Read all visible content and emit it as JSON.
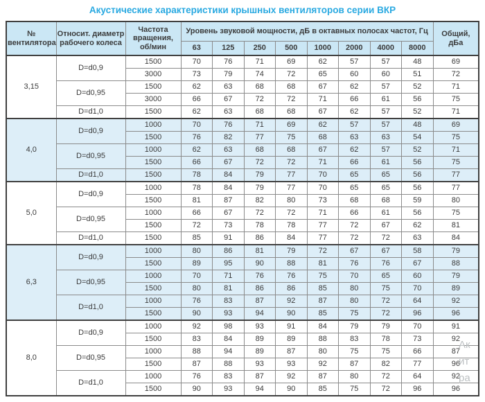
{
  "title": "Акустические характеристики крышных вентиляторов серии ВКР",
  "colors": {
    "title_color": "#29a9e1",
    "header_bg": "#cbe7f5",
    "group_shade_bg": "#ddeef8",
    "border_dark": "#3f3f3f",
    "border_light": "#8a8a8a",
    "text_color": "#3a3a3a",
    "watermark_color": "#bcc0c2"
  },
  "table": {
    "header": {
      "fan_no": "№ вентилятора",
      "diameter": "Относит. диаметр рабочего колеса",
      "speed": "Частота вращения, об/мин",
      "spl_group": "Уровень звуковой мощности, дБ в октавных полосах частот, Гц",
      "freqs": [
        "63",
        "125",
        "250",
        "500",
        "1000",
        "2000",
        "4000",
        "8000"
      ],
      "total": "Общий, дБа"
    },
    "groups": [
      {
        "fan": "3,15",
        "shaded": false,
        "subs": [
          {
            "d": "D=d0,9",
            "rows": [
              {
                "rpm": "1500",
                "v": [
                  70,
                  76,
                  71,
                  69,
                  62,
                  57,
                  57,
                  48
                ],
                "total": 69
              },
              {
                "rpm": "3000",
                "v": [
                  73,
                  79,
                  74,
                  72,
                  65,
                  60,
                  60,
                  51
                ],
                "total": 72
              }
            ]
          },
          {
            "d": "D=d0,95",
            "rows": [
              {
                "rpm": "1500",
                "v": [
                  62,
                  63,
                  68,
                  68,
                  67,
                  62,
                  57,
                  52
                ],
                "total": 71
              },
              {
                "rpm": "3000",
                "v": [
                  66,
                  67,
                  72,
                  72,
                  71,
                  66,
                  61,
                  56
                ],
                "total": 75
              }
            ]
          },
          {
            "d": "D=d1,0",
            "rows": [
              {
                "rpm": "1500",
                "v": [
                  62,
                  63,
                  68,
                  68,
                  67,
                  62,
                  57,
                  52
                ],
                "total": 71
              }
            ]
          }
        ]
      },
      {
        "fan": "4,0",
        "shaded": true,
        "subs": [
          {
            "d": "D=d0,9",
            "rows": [
              {
                "rpm": "1000",
                "v": [
                  70,
                  76,
                  71,
                  69,
                  62,
                  57,
                  57,
                  48
                ],
                "total": 69
              },
              {
                "rpm": "1500",
                "v": [
                  76,
                  82,
                  77,
                  75,
                  68,
                  63,
                  63,
                  54
                ],
                "total": 75
              }
            ]
          },
          {
            "d": "D=d0,95",
            "rows": [
              {
                "rpm": "1000",
                "v": [
                  62,
                  63,
                  68,
                  68,
                  67,
                  62,
                  57,
                  52
                ],
                "total": 71
              },
              {
                "rpm": "1500",
                "v": [
                  66,
                  67,
                  72,
                  72,
                  71,
                  66,
                  61,
                  56
                ],
                "total": 75
              }
            ]
          },
          {
            "d": "D=d1,0",
            "rows": [
              {
                "rpm": "1500",
                "v": [
                  78,
                  84,
                  79,
                  77,
                  70,
                  65,
                  65,
                  56
                ],
                "total": 77
              }
            ]
          }
        ]
      },
      {
        "fan": "5,0",
        "shaded": false,
        "subs": [
          {
            "d": "D=d0,9",
            "rows": [
              {
                "rpm": "1000",
                "v": [
                  78,
                  84,
                  79,
                  77,
                  70,
                  65,
                  65,
                  56
                ],
                "total": 77
              },
              {
                "rpm": "1500",
                "v": [
                  81,
                  87,
                  82,
                  80,
                  73,
                  68,
                  68,
                  59
                ],
                "total": 80
              }
            ]
          },
          {
            "d": "D=d0,95",
            "rows": [
              {
                "rpm": "1000",
                "v": [
                  66,
                  67,
                  72,
                  72,
                  71,
                  66,
                  61,
                  56
                ],
                "total": 75
              },
              {
                "rpm": "1500",
                "v": [
                  72,
                  73,
                  78,
                  78,
                  77,
                  72,
                  67,
                  62
                ],
                "total": 81
              }
            ]
          },
          {
            "d": "D=d1,0",
            "rows": [
              {
                "rpm": "1500",
                "v": [
                  85,
                  91,
                  86,
                  84,
                  77,
                  72,
                  72,
                  63
                ],
                "total": 84
              }
            ]
          }
        ]
      },
      {
        "fan": "6,3",
        "shaded": true,
        "subs": [
          {
            "d": "D=d0,9",
            "rows": [
              {
                "rpm": "1000",
                "v": [
                  80,
                  86,
                  81,
                  79,
                  72,
                  67,
                  67,
                  58
                ],
                "total": 79
              },
              {
                "rpm": "1500",
                "v": [
                  89,
                  95,
                  90,
                  88,
                  81,
                  76,
                  76,
                  67
                ],
                "total": 88
              }
            ]
          },
          {
            "d": "D=d0,95",
            "rows": [
              {
                "rpm": "1000",
                "v": [
                  70,
                  71,
                  76,
                  76,
                  75,
                  70,
                  65,
                  60
                ],
                "total": 79
              },
              {
                "rpm": "1500",
                "v": [
                  80,
                  81,
                  86,
                  86,
                  85,
                  80,
                  75,
                  70
                ],
                "total": 89
              }
            ]
          },
          {
            "d": "D=d1,0",
            "rows": [
              {
                "rpm": "1000",
                "v": [
                  76,
                  83,
                  87,
                  92,
                  87,
                  80,
                  72,
                  64
                ],
                "total": 92
              },
              {
                "rpm": "1500",
                "v": [
                  90,
                  93,
                  94,
                  90,
                  85,
                  75,
                  72,
                  96
                ],
                "total": 96
              }
            ]
          }
        ]
      },
      {
        "fan": "8,0",
        "shaded": false,
        "subs": [
          {
            "d": "D=d0,9",
            "rows": [
              {
                "rpm": "1000",
                "v": [
                  92,
                  98,
                  93,
                  91,
                  84,
                  79,
                  79,
                  70
                ],
                "total": 91
              },
              {
                "rpm": "1500",
                "v": [
                  83,
                  84,
                  89,
                  89,
                  88,
                  83,
                  78,
                  73
                ],
                "total": 92
              }
            ]
          },
          {
            "d": "D=d0,95",
            "rows": [
              {
                "rpm": "1000",
                "v": [
                  88,
                  94,
                  89,
                  87,
                  80,
                  75,
                  75,
                  66
                ],
                "total": 87
              },
              {
                "rpm": "1500",
                "v": [
                  87,
                  88,
                  93,
                  93,
                  92,
                  87,
                  82,
                  77
                ],
                "total": 96
              }
            ]
          },
          {
            "d": "D=d1,0",
            "rows": [
              {
                "rpm": "1000",
                "v": [
                  76,
                  83,
                  87,
                  92,
                  87,
                  80,
                  72,
                  64
                ],
                "total": 92
              },
              {
                "rpm": "1500",
                "v": [
                  90,
                  93,
                  94,
                  90,
                  85,
                  75,
                  72,
                  96
                ],
                "total": 96
              }
            ]
          }
        ]
      }
    ]
  },
  "watermark": {
    "lines": [
      "Ак",
      "ит",
      "ра"
    ]
  }
}
